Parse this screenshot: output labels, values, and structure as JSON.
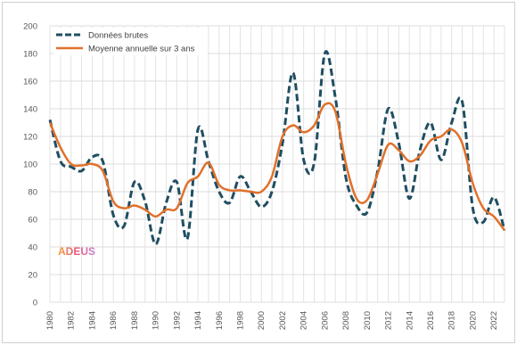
{
  "chart_data": {
    "type": "line",
    "title": "",
    "xlabel": "",
    "ylabel": "",
    "x": [
      1980,
      1981,
      1982,
      1983,
      1984,
      1985,
      1986,
      1987,
      1988,
      1989,
      1990,
      1991,
      1992,
      1993,
      1994,
      1995,
      1996,
      1997,
      1998,
      1999,
      2000,
      2001,
      2002,
      2003,
      2004,
      2005,
      2006,
      2007,
      2008,
      2009,
      2010,
      2011,
      2012,
      2013,
      2014,
      2015,
      2016,
      2017,
      2018,
      2019,
      2020,
      2021,
      2022,
      2023
    ],
    "x_tick_labels": [
      "1980",
      "1982",
      "1984",
      "1986",
      "1988",
      "1990",
      "1992",
      "1994",
      "1996",
      "1998",
      "2000",
      "2002",
      "2004",
      "2006",
      "2008",
      "2010",
      "2012",
      "2014",
      "2016",
      "2018",
      "2020",
      "2022"
    ],
    "ylim": [
      0,
      200
    ],
    "y_ticks": [
      0,
      20,
      40,
      60,
      80,
      100,
      120,
      140,
      160,
      180,
      200
    ],
    "grid": true,
    "legend_position": "top-left",
    "series": [
      {
        "name": "Données brutes",
        "style": "dashed",
        "color": "#1f4e61",
        "values": [
          132,
          102,
          98,
          95,
          105,
          102,
          63,
          55,
          87,
          73,
          42,
          72,
          87,
          46,
          125,
          102,
          80,
          72,
          91,
          80,
          69,
          80,
          115,
          166,
          103,
          101,
          180,
          148,
          90,
          70,
          65,
          95,
          140,
          115,
          75,
          110,
          130,
          103,
          130,
          145,
          68,
          58,
          76,
          52
        ]
      },
      {
        "name": "Moyenne annuelle sur 3 ans",
        "style": "solid",
        "color": "#e0712c",
        "values": [
          130,
          112,
          100,
          99,
          100,
          95,
          73,
          68,
          70,
          67,
          62,
          67,
          68,
          86,
          91,
          101,
          85,
          81,
          81,
          80,
          80,
          91,
          120,
          128,
          123,
          128,
          143,
          138,
          100,
          75,
          74,
          93,
          114,
          110,
          102,
          106,
          117,
          120,
          125,
          115,
          86,
          68,
          62,
          52
        ]
      }
    ]
  },
  "logo": {
    "text": "ADEUS"
  }
}
